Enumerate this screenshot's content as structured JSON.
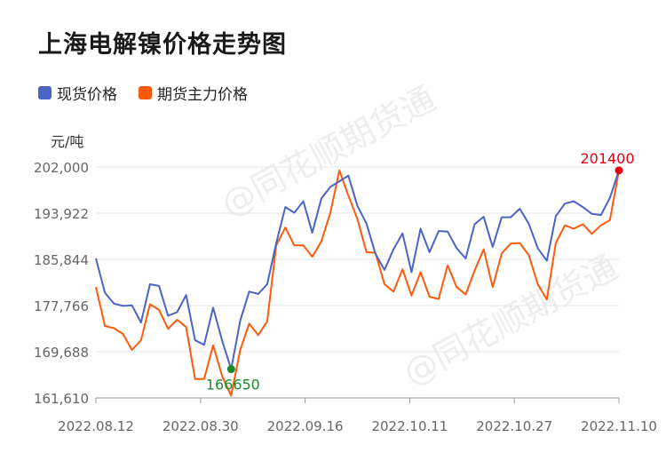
{
  "title": "上海电解镍价格走势图",
  "unit": "元/吨",
  "watermark": "@同花顺期货通",
  "legend": [
    {
      "label": "现货价格",
      "color": "#4a64c8"
    },
    {
      "label": "期货主力价格",
      "color": "#ff5a0a"
    }
  ],
  "colors": {
    "spot": "#4a64c8",
    "futures": "#ff5a0a",
    "max_label": "#e60012",
    "min_label": "#1e8a2e",
    "axis_text": "#666666",
    "grid": "#e6e6e6"
  },
  "chart_data": {
    "type": "line",
    "x_tick_labels": [
      "2022.08.12",
      "2022.08.30",
      "2022.09.16",
      "2022.10.11",
      "2022.10.27",
      "2022.11.10"
    ],
    "y_ticks": [
      161610,
      169688,
      177766,
      185844,
      193922,
      202000
    ],
    "y_tick_labels": [
      "161,610",
      "169,688",
      "177,766",
      "185,844",
      "193,922",
      "202,000"
    ],
    "ylim": [
      161610,
      202000
    ],
    "series": [
      {
        "name": "现货价格",
        "values": [
          186000,
          180000,
          178100,
          177700,
          177800,
          174800,
          181500,
          181200,
          176000,
          176600,
          179600,
          171700,
          170900,
          177400,
          171600,
          166650,
          175100,
          180200,
          179800,
          181500,
          188700,
          195000,
          194000,
          196000,
          190500,
          196500,
          198500,
          199500,
          200500,
          195200,
          192100,
          186800,
          184000,
          187600,
          190400,
          183600,
          191200,
          187100,
          190800,
          190700,
          187800,
          186000,
          192000,
          193300,
          188000,
          193200,
          193200,
          194700,
          192100,
          187800,
          185600,
          193400,
          195600,
          196000,
          195000,
          193800,
          193600,
          196600,
          201400
        ]
      },
      {
        "name": "期货主力价格",
        "values": [
          181000,
          174200,
          173800,
          172800,
          170000,
          171700,
          178000,
          177000,
          173700,
          175300,
          174000,
          164900,
          164900,
          170800,
          165400,
          162000,
          170000,
          174600,
          172600,
          175000,
          188300,
          191400,
          188300,
          188300,
          186300,
          189000,
          194000,
          201400,
          197000,
          192900,
          187100,
          187000,
          181500,
          180200,
          184100,
          179500,
          183600,
          179300,
          178900,
          184800,
          181000,
          179700,
          183900,
          187600,
          181000,
          186900,
          188600,
          188700,
          186600,
          181500,
          178800,
          188700,
          191800,
          191200,
          192000,
          190300,
          191800,
          192700,
          201400
        ]
      }
    ],
    "annotations": [
      {
        "label": "201400",
        "value": 201400,
        "role": "max"
      },
      {
        "label": "166650",
        "value": 166650,
        "role": "min"
      }
    ]
  }
}
